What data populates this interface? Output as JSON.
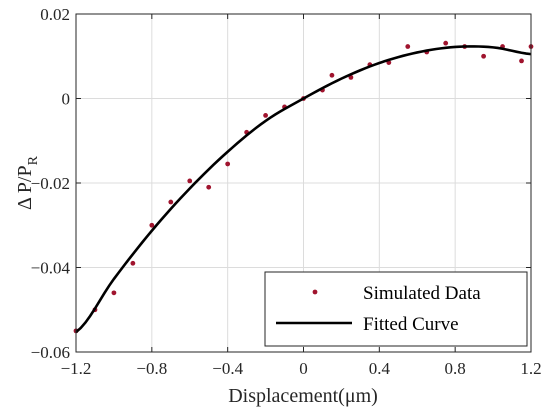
{
  "chart_data": {
    "type": "scatter",
    "title": "",
    "xlabel": "Displacement(μm)",
    "ylabel": {
      "main": "Δ P/P",
      "sub": "R"
    },
    "xlim": [
      -1.2,
      1.2
    ],
    "ylim": [
      -0.06,
      0.02
    ],
    "xticks": [
      -1.2,
      -0.8,
      -0.4,
      0,
      0.4,
      0.8,
      1.2
    ],
    "xtick_labels": [
      "−1.2",
      "−0.8",
      "−0.4",
      "0",
      "0.4",
      "0.8",
      "1.2"
    ],
    "yticks": [
      -0.06,
      -0.04,
      -0.02,
      0,
      0.02
    ],
    "ytick_labels": [
      "−0.06",
      "−0.04",
      "−0.02",
      "0",
      "0.02"
    ],
    "grid": true,
    "legend_position": "bottom-right",
    "series": [
      {
        "name": "Simulated Data",
        "kind": "markers",
        "color": "#a0142e",
        "x": [
          -1.2,
          -1.1,
          -1.0,
          -0.9,
          -0.8,
          -0.7,
          -0.6,
          -0.5,
          -0.4,
          -0.3,
          -0.2,
          -0.1,
          0.0,
          0.1,
          0.15,
          0.25,
          0.35,
          0.45,
          0.55,
          0.65,
          0.75,
          0.85,
          0.95,
          1.05,
          1.15,
          1.2
        ],
        "y": [
          -0.055,
          -0.05,
          -0.046,
          -0.039,
          -0.03,
          -0.0245,
          -0.0195,
          -0.021,
          -0.0155,
          -0.008,
          -0.004,
          -0.002,
          0.0,
          0.002,
          0.0055,
          0.005,
          0.008,
          0.0085,
          0.0123,
          0.011,
          0.0131,
          0.0123,
          0.01,
          0.0123,
          0.0089,
          0.0123
        ]
      },
      {
        "name": "Fitted Curve",
        "kind": "line",
        "color": "#000000",
        "x": [
          -1.2,
          -1.0,
          -0.8,
          -0.6,
          -0.4,
          -0.2,
          0.0,
          0.2,
          0.4,
          0.6,
          0.8,
          1.0,
          1.2
        ],
        "y": [
          -0.0553,
          -0.0427,
          -0.0313,
          -0.0213,
          -0.0126,
          -0.0053,
          0.0,
          0.0047,
          0.0084,
          0.0109,
          0.0122,
          0.0121,
          0.0105
        ]
      }
    ]
  }
}
